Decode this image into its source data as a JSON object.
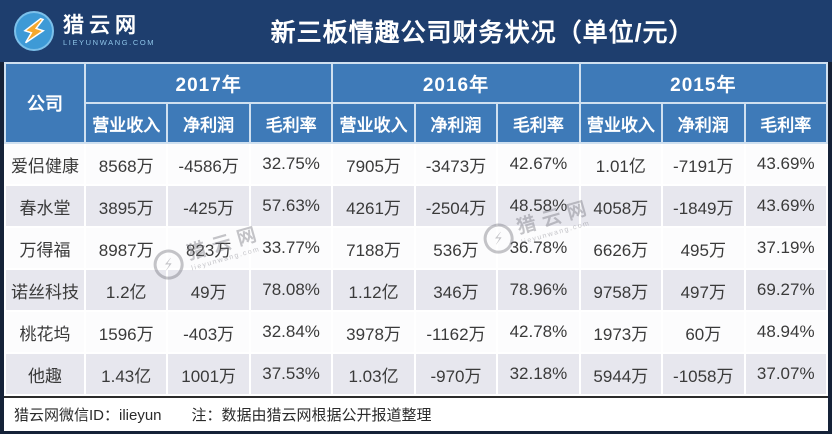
{
  "brand": {
    "name": "猎云网",
    "url": "LIEYUNWANG.COM"
  },
  "header": {
    "title": "新三板情趣公司财务状况（单位/元）"
  },
  "chart_data": {
    "type": "table",
    "title": "新三板情趣公司财务状况",
    "unit_note": "（单位/元）",
    "corner_header": "公司",
    "year_groups": [
      "2017年",
      "2016年",
      "2015年"
    ],
    "metric_headers": [
      "营业收入",
      "净利润",
      "毛利率"
    ],
    "rows": [
      {
        "company": "爱侣健康",
        "values": [
          "8568万",
          "-4586万",
          "32.75%",
          "7905万",
          "-3473万",
          "42.67%",
          "1.01亿",
          "-7191万",
          "43.69%"
        ]
      },
      {
        "company": "春水堂",
        "values": [
          "3895万",
          "-425万",
          "57.63%",
          "4261万",
          "-2504万",
          "48.58%",
          "4058万",
          "-1849万",
          "43.69%"
        ]
      },
      {
        "company": "万得福",
        "values": [
          "8987万",
          "823万",
          "33.77%",
          "7188万",
          "536万",
          "36.78%",
          "6626万",
          "495万",
          "37.19%"
        ]
      },
      {
        "company": "诺丝科技",
        "values": [
          "1.2亿",
          "49万",
          "78.08%",
          "1.12亿",
          "346万",
          "78.96%",
          "9758万",
          "497万",
          "69.27%"
        ]
      },
      {
        "company": "桃花坞",
        "values": [
          "1596万",
          "-403万",
          "32.84%",
          "3978万",
          "-1162万",
          "42.78%",
          "1973万",
          "60万",
          "48.94%"
        ]
      },
      {
        "company": "他趣",
        "values": [
          "1.43亿",
          "1001万",
          "37.53%",
          "1.03亿",
          "-970万",
          "32.18%",
          "5944万",
          "-1058万",
          "37.07%"
        ]
      }
    ]
  },
  "watermark": {
    "text": "猎云网",
    "url": "lieyunwang.com",
    "bolt": "⚡"
  },
  "footer": {
    "wechat_id": "猎云网微信ID：ilieyun",
    "note": "注：数据由猎云网根据公开报道整理"
  },
  "colors": {
    "topbar_navy": "#1e3e6e",
    "frame_dark": "#152238",
    "header_blue": "#3e7ab8",
    "stripe_gray": "#e7e7ee",
    "stripe_white": "#fcfcfd",
    "accent_orange": "#f6a82d",
    "logo_blue": "#3e9ad6",
    "text_dark": "#3a3a3a"
  }
}
